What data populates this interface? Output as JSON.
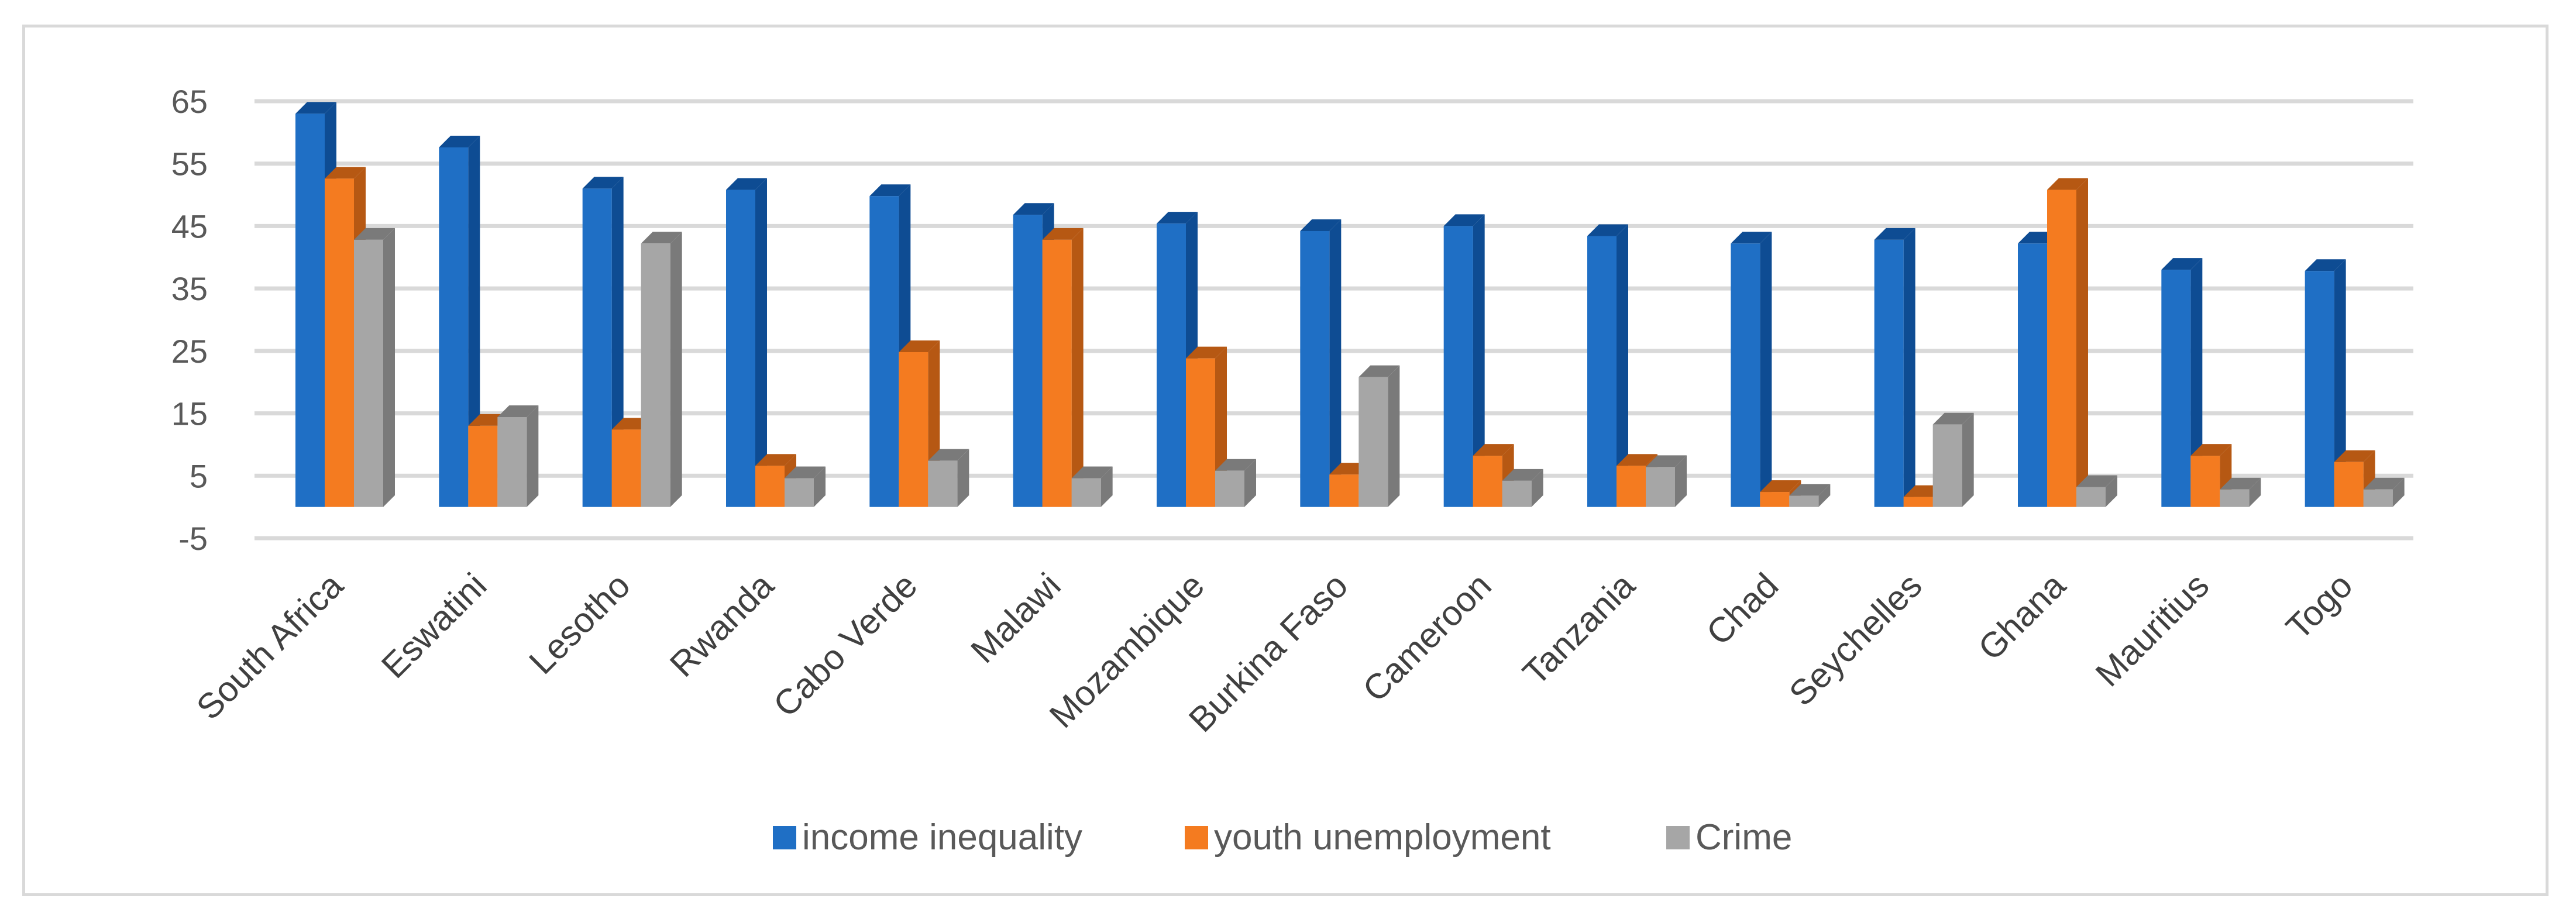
{
  "chart_data": {
    "type": "bar",
    "style": "3d-clustered-column",
    "title": "",
    "xlabel": "",
    "ylabel": "",
    "ylim": [
      -5,
      65
    ],
    "yticks": [
      -5,
      5,
      15,
      25,
      35,
      45,
      55,
      65
    ],
    "grid": true,
    "legend_position": "bottom",
    "categories": [
      "South Africa",
      "Eswatini",
      "Lesotho",
      "Rwanda",
      "Cabo Verde",
      "Malawi",
      "Mozambique",
      "Burkina Faso",
      "Cameroon",
      "Tanzania",
      "Chad",
      "Seychelles",
      "Ghana",
      "Mauritius",
      "Togo"
    ],
    "series": [
      {
        "name": "income inequality",
        "color": "#1f6fc5",
        "side": "#0e4c93",
        "values": [
          63,
          57.6,
          51,
          50.8,
          49.8,
          46.8,
          45.4,
          44.2,
          45,
          43.4,
          42.2,
          42.8,
          42.2,
          38,
          37.8
        ]
      },
      {
        "name": "youth unemployment",
        "color": "#f47b20",
        "side": "#b65813",
        "values": [
          52.6,
          13,
          12.4,
          6.6,
          24.8,
          42.8,
          23.8,
          5.2,
          8.2,
          6.6,
          2.4,
          1.6,
          50.8,
          8.2,
          7.2
        ]
      },
      {
        "name": "Crime",
        "color": "#a6a6a6",
        "side": "#7a7a7a",
        "values": [
          42.8,
          14.4,
          42.2,
          4.6,
          7.4,
          4.6,
          5.8,
          20.8,
          4.2,
          6.4,
          1.8,
          13.2,
          3.2,
          2.8,
          2.8
        ]
      }
    ]
  }
}
